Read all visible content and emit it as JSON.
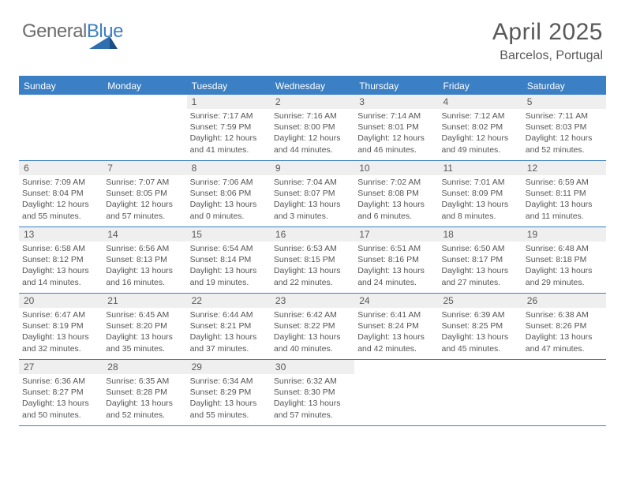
{
  "logo": {
    "part1": "General",
    "part2": "Blue"
  },
  "title": "April 2025",
  "location": "Barcelos, Portugal",
  "colors": {
    "accent": "#3b7fc4",
    "daynum_bg": "#efefef",
    "text": "#555555",
    "title_text": "#595959"
  },
  "weekdays": [
    "Sunday",
    "Monday",
    "Tuesday",
    "Wednesday",
    "Thursday",
    "Friday",
    "Saturday"
  ],
  "weeks": [
    [
      {
        "n": "",
        "sr": "",
        "ss": "",
        "dl": ""
      },
      {
        "n": "",
        "sr": "",
        "ss": "",
        "dl": ""
      },
      {
        "n": "1",
        "sr": "Sunrise: 7:17 AM",
        "ss": "Sunset: 7:59 PM",
        "dl": "Daylight: 12 hours and 41 minutes."
      },
      {
        "n": "2",
        "sr": "Sunrise: 7:16 AM",
        "ss": "Sunset: 8:00 PM",
        "dl": "Daylight: 12 hours and 44 minutes."
      },
      {
        "n": "3",
        "sr": "Sunrise: 7:14 AM",
        "ss": "Sunset: 8:01 PM",
        "dl": "Daylight: 12 hours and 46 minutes."
      },
      {
        "n": "4",
        "sr": "Sunrise: 7:12 AM",
        "ss": "Sunset: 8:02 PM",
        "dl": "Daylight: 12 hours and 49 minutes."
      },
      {
        "n": "5",
        "sr": "Sunrise: 7:11 AM",
        "ss": "Sunset: 8:03 PM",
        "dl": "Daylight: 12 hours and 52 minutes."
      }
    ],
    [
      {
        "n": "6",
        "sr": "Sunrise: 7:09 AM",
        "ss": "Sunset: 8:04 PM",
        "dl": "Daylight: 12 hours and 55 minutes."
      },
      {
        "n": "7",
        "sr": "Sunrise: 7:07 AM",
        "ss": "Sunset: 8:05 PM",
        "dl": "Daylight: 12 hours and 57 minutes."
      },
      {
        "n": "8",
        "sr": "Sunrise: 7:06 AM",
        "ss": "Sunset: 8:06 PM",
        "dl": "Daylight: 13 hours and 0 minutes."
      },
      {
        "n": "9",
        "sr": "Sunrise: 7:04 AM",
        "ss": "Sunset: 8:07 PM",
        "dl": "Daylight: 13 hours and 3 minutes."
      },
      {
        "n": "10",
        "sr": "Sunrise: 7:02 AM",
        "ss": "Sunset: 8:08 PM",
        "dl": "Daylight: 13 hours and 6 minutes."
      },
      {
        "n": "11",
        "sr": "Sunrise: 7:01 AM",
        "ss": "Sunset: 8:09 PM",
        "dl": "Daylight: 13 hours and 8 minutes."
      },
      {
        "n": "12",
        "sr": "Sunrise: 6:59 AM",
        "ss": "Sunset: 8:11 PM",
        "dl": "Daylight: 13 hours and 11 minutes."
      }
    ],
    [
      {
        "n": "13",
        "sr": "Sunrise: 6:58 AM",
        "ss": "Sunset: 8:12 PM",
        "dl": "Daylight: 13 hours and 14 minutes."
      },
      {
        "n": "14",
        "sr": "Sunrise: 6:56 AM",
        "ss": "Sunset: 8:13 PM",
        "dl": "Daylight: 13 hours and 16 minutes."
      },
      {
        "n": "15",
        "sr": "Sunrise: 6:54 AM",
        "ss": "Sunset: 8:14 PM",
        "dl": "Daylight: 13 hours and 19 minutes."
      },
      {
        "n": "16",
        "sr": "Sunrise: 6:53 AM",
        "ss": "Sunset: 8:15 PM",
        "dl": "Daylight: 13 hours and 22 minutes."
      },
      {
        "n": "17",
        "sr": "Sunrise: 6:51 AM",
        "ss": "Sunset: 8:16 PM",
        "dl": "Daylight: 13 hours and 24 minutes."
      },
      {
        "n": "18",
        "sr": "Sunrise: 6:50 AM",
        "ss": "Sunset: 8:17 PM",
        "dl": "Daylight: 13 hours and 27 minutes."
      },
      {
        "n": "19",
        "sr": "Sunrise: 6:48 AM",
        "ss": "Sunset: 8:18 PM",
        "dl": "Daylight: 13 hours and 29 minutes."
      }
    ],
    [
      {
        "n": "20",
        "sr": "Sunrise: 6:47 AM",
        "ss": "Sunset: 8:19 PM",
        "dl": "Daylight: 13 hours and 32 minutes."
      },
      {
        "n": "21",
        "sr": "Sunrise: 6:45 AM",
        "ss": "Sunset: 8:20 PM",
        "dl": "Daylight: 13 hours and 35 minutes."
      },
      {
        "n": "22",
        "sr": "Sunrise: 6:44 AM",
        "ss": "Sunset: 8:21 PM",
        "dl": "Daylight: 13 hours and 37 minutes."
      },
      {
        "n": "23",
        "sr": "Sunrise: 6:42 AM",
        "ss": "Sunset: 8:22 PM",
        "dl": "Daylight: 13 hours and 40 minutes."
      },
      {
        "n": "24",
        "sr": "Sunrise: 6:41 AM",
        "ss": "Sunset: 8:24 PM",
        "dl": "Daylight: 13 hours and 42 minutes."
      },
      {
        "n": "25",
        "sr": "Sunrise: 6:39 AM",
        "ss": "Sunset: 8:25 PM",
        "dl": "Daylight: 13 hours and 45 minutes."
      },
      {
        "n": "26",
        "sr": "Sunrise: 6:38 AM",
        "ss": "Sunset: 8:26 PM",
        "dl": "Daylight: 13 hours and 47 minutes."
      }
    ],
    [
      {
        "n": "27",
        "sr": "Sunrise: 6:36 AM",
        "ss": "Sunset: 8:27 PM",
        "dl": "Daylight: 13 hours and 50 minutes."
      },
      {
        "n": "28",
        "sr": "Sunrise: 6:35 AM",
        "ss": "Sunset: 8:28 PM",
        "dl": "Daylight: 13 hours and 52 minutes."
      },
      {
        "n": "29",
        "sr": "Sunrise: 6:34 AM",
        "ss": "Sunset: 8:29 PM",
        "dl": "Daylight: 13 hours and 55 minutes."
      },
      {
        "n": "30",
        "sr": "Sunrise: 6:32 AM",
        "ss": "Sunset: 8:30 PM",
        "dl": "Daylight: 13 hours and 57 minutes."
      },
      {
        "n": "",
        "sr": "",
        "ss": "",
        "dl": ""
      },
      {
        "n": "",
        "sr": "",
        "ss": "",
        "dl": ""
      },
      {
        "n": "",
        "sr": "",
        "ss": "",
        "dl": ""
      }
    ]
  ]
}
